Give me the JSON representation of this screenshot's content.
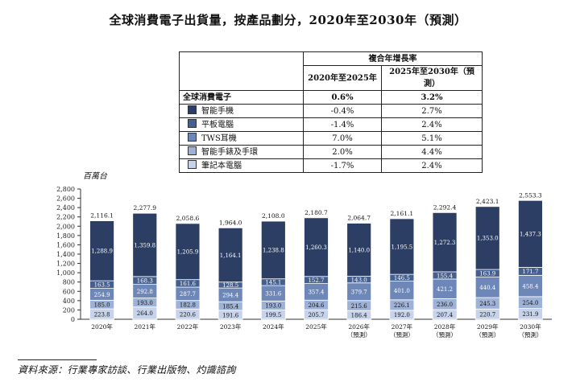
{
  "title": "全球消費電子出貨量，按產品劃分，2020年至2030年（預測）",
  "cagr_table": {
    "header": "複合年增長率",
    "col1": "2020年至2025年",
    "col2": "2025年至2030年（預測）",
    "total_row": {
      "label": "全球消費電子",
      "v1": "0.6%",
      "v2": "3.2%"
    },
    "rows": [
      {
        "label": "智能手機",
        "v1": "-0.4%",
        "v2": "2.7%",
        "color": "#2c3e63"
      },
      {
        "label": "平板電腦",
        "v1": "-1.4%",
        "v2": "2.4%",
        "color": "#45608f"
      },
      {
        "label": "TWS耳機",
        "v1": "7.0%",
        "v2": "5.1%",
        "color": "#6d87b8"
      },
      {
        "label": "智能手錶及手環",
        "v1": "2.0%",
        "v2": "4.4%",
        "color": "#9eb1d6"
      },
      {
        "label": "筆記本電腦",
        "v1": "-1.7%",
        "v2": "2.4%",
        "color": "#c7d3ea"
      }
    ]
  },
  "chart_data": {
    "type": "bar",
    "stacked": true,
    "unit_label": "百萬台",
    "categories": [
      "2020年",
      "2021年",
      "2022年",
      "2023年",
      "2024年",
      "2025年",
      "2026年",
      "2027年",
      "2028年",
      "2029年",
      "2030年"
    ],
    "forecast_note": "（預測）",
    "forecast_from_index": 6,
    "ylim": [
      0,
      2800
    ],
    "yticks": [
      "0",
      "200",
      "400",
      "600",
      "800",
      "1,000",
      "1,200",
      "1,400",
      "1,600",
      "1,800",
      "2,000",
      "2,200",
      "2,400",
      "2,600",
      "2,800"
    ],
    "ytick_values": [
      0,
      200,
      400,
      600,
      800,
      1000,
      1200,
      1400,
      1600,
      1800,
      2000,
      2200,
      2400,
      2600,
      2800
    ],
    "series": [
      {
        "name": "筆記本電腦",
        "color": "#c7d3ea",
        "values": [
          223.8,
          264.0,
          220.6,
          191.6,
          199.5,
          205.7,
          186.4,
          192.0,
          207.4,
          220.7,
          231.9
        ],
        "labels": [
          "223.8",
          "264.0",
          "220.6",
          "191.6",
          "199.5",
          "205.7",
          "186.4",
          "192.0",
          "207.4",
          "220.7",
          "231.9"
        ]
      },
      {
        "name": "智能手錶及手環",
        "color": "#9eb1d6",
        "values": [
          185.0,
          193.0,
          182.8,
          185.4,
          193.0,
          204.6,
          215.6,
          226.1,
          236.0,
          245.3,
          254.0
        ],
        "labels": [
          "185.0",
          "193.0",
          "182.8",
          "185.4",
          "193.0",
          "204.6",
          "215.6",
          "226.1",
          "236.0",
          "245.3",
          "254.0"
        ]
      },
      {
        "name": "TWS耳機",
        "color": "#6d87b8",
        "values": [
          254.9,
          292.8,
          287.7,
          294.4,
          331.6,
          357.4,
          379.7,
          401.0,
          421.2,
          440.4,
          458.4
        ],
        "labels": [
          "254.9",
          "292.8",
          "287.7",
          "294.4",
          "331.6",
          "357.4",
          "379.7",
          "401.0",
          "421.2",
          "440.4",
          "458.4"
        ]
      },
      {
        "name": "平板電腦",
        "color": "#45608f",
        "values": [
          163.5,
          168.3,
          161.6,
          128.5,
          145.1,
          152.7,
          143.0,
          146.5,
          155.4,
          163.9,
          171.7
        ],
        "labels": [
          "163.5",
          "168.3",
          "161.6",
          "128.5",
          "145.1",
          "152.7",
          "143.0",
          "146.5",
          "155.4",
          "163.9",
          "171.7"
        ]
      },
      {
        "name": "智能手機",
        "color": "#2c3e63",
        "values": [
          1288.9,
          1359.8,
          1205.9,
          1164.1,
          1238.8,
          1260.3,
          1140.0,
          1195.5,
          1272.3,
          1353.0,
          1437.3
        ],
        "labels": [
          "1,288.9",
          "1,359.8",
          "1,205.9",
          "1,164.1",
          "1,238.8",
          "1,260.3",
          "1,140.0",
          "1,195.5",
          "1,272.3",
          "1,353.0",
          "1,437.3"
        ]
      }
    ],
    "totals": [
      2116.1,
      2277.9,
      2058.6,
      1964.0,
      2108.0,
      2180.7,
      2064.7,
      2161.1,
      2292.4,
      2423.1,
      2553.3
    ],
    "total_labels": [
      "2,116.1",
      "2,277.9",
      "2,058.6",
      "1,964.0",
      "2,108.0",
      "2,180.7",
      "2,064.7",
      "2,161.1",
      "2,292.4",
      "2,423.1",
      "2,553.3"
    ]
  },
  "source": "資料來源：行業專家訪談、行業出版物、灼識諮詢"
}
